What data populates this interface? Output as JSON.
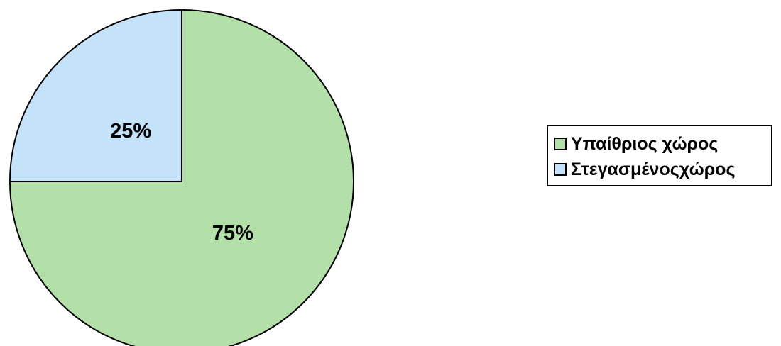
{
  "chart_data": {
    "type": "pie",
    "categories": [
      "Υπαίθριος χώρος",
      "Στεγασμένοςχώρος"
    ],
    "values": [
      75,
      25
    ],
    "value_labels": [
      "75%",
      "25%"
    ],
    "colors": [
      "#b3dfa9",
      "#c4e3f9"
    ],
    "start": "12 o'clock",
    "direction": "clockwise",
    "legend_position": "right",
    "title": ""
  }
}
